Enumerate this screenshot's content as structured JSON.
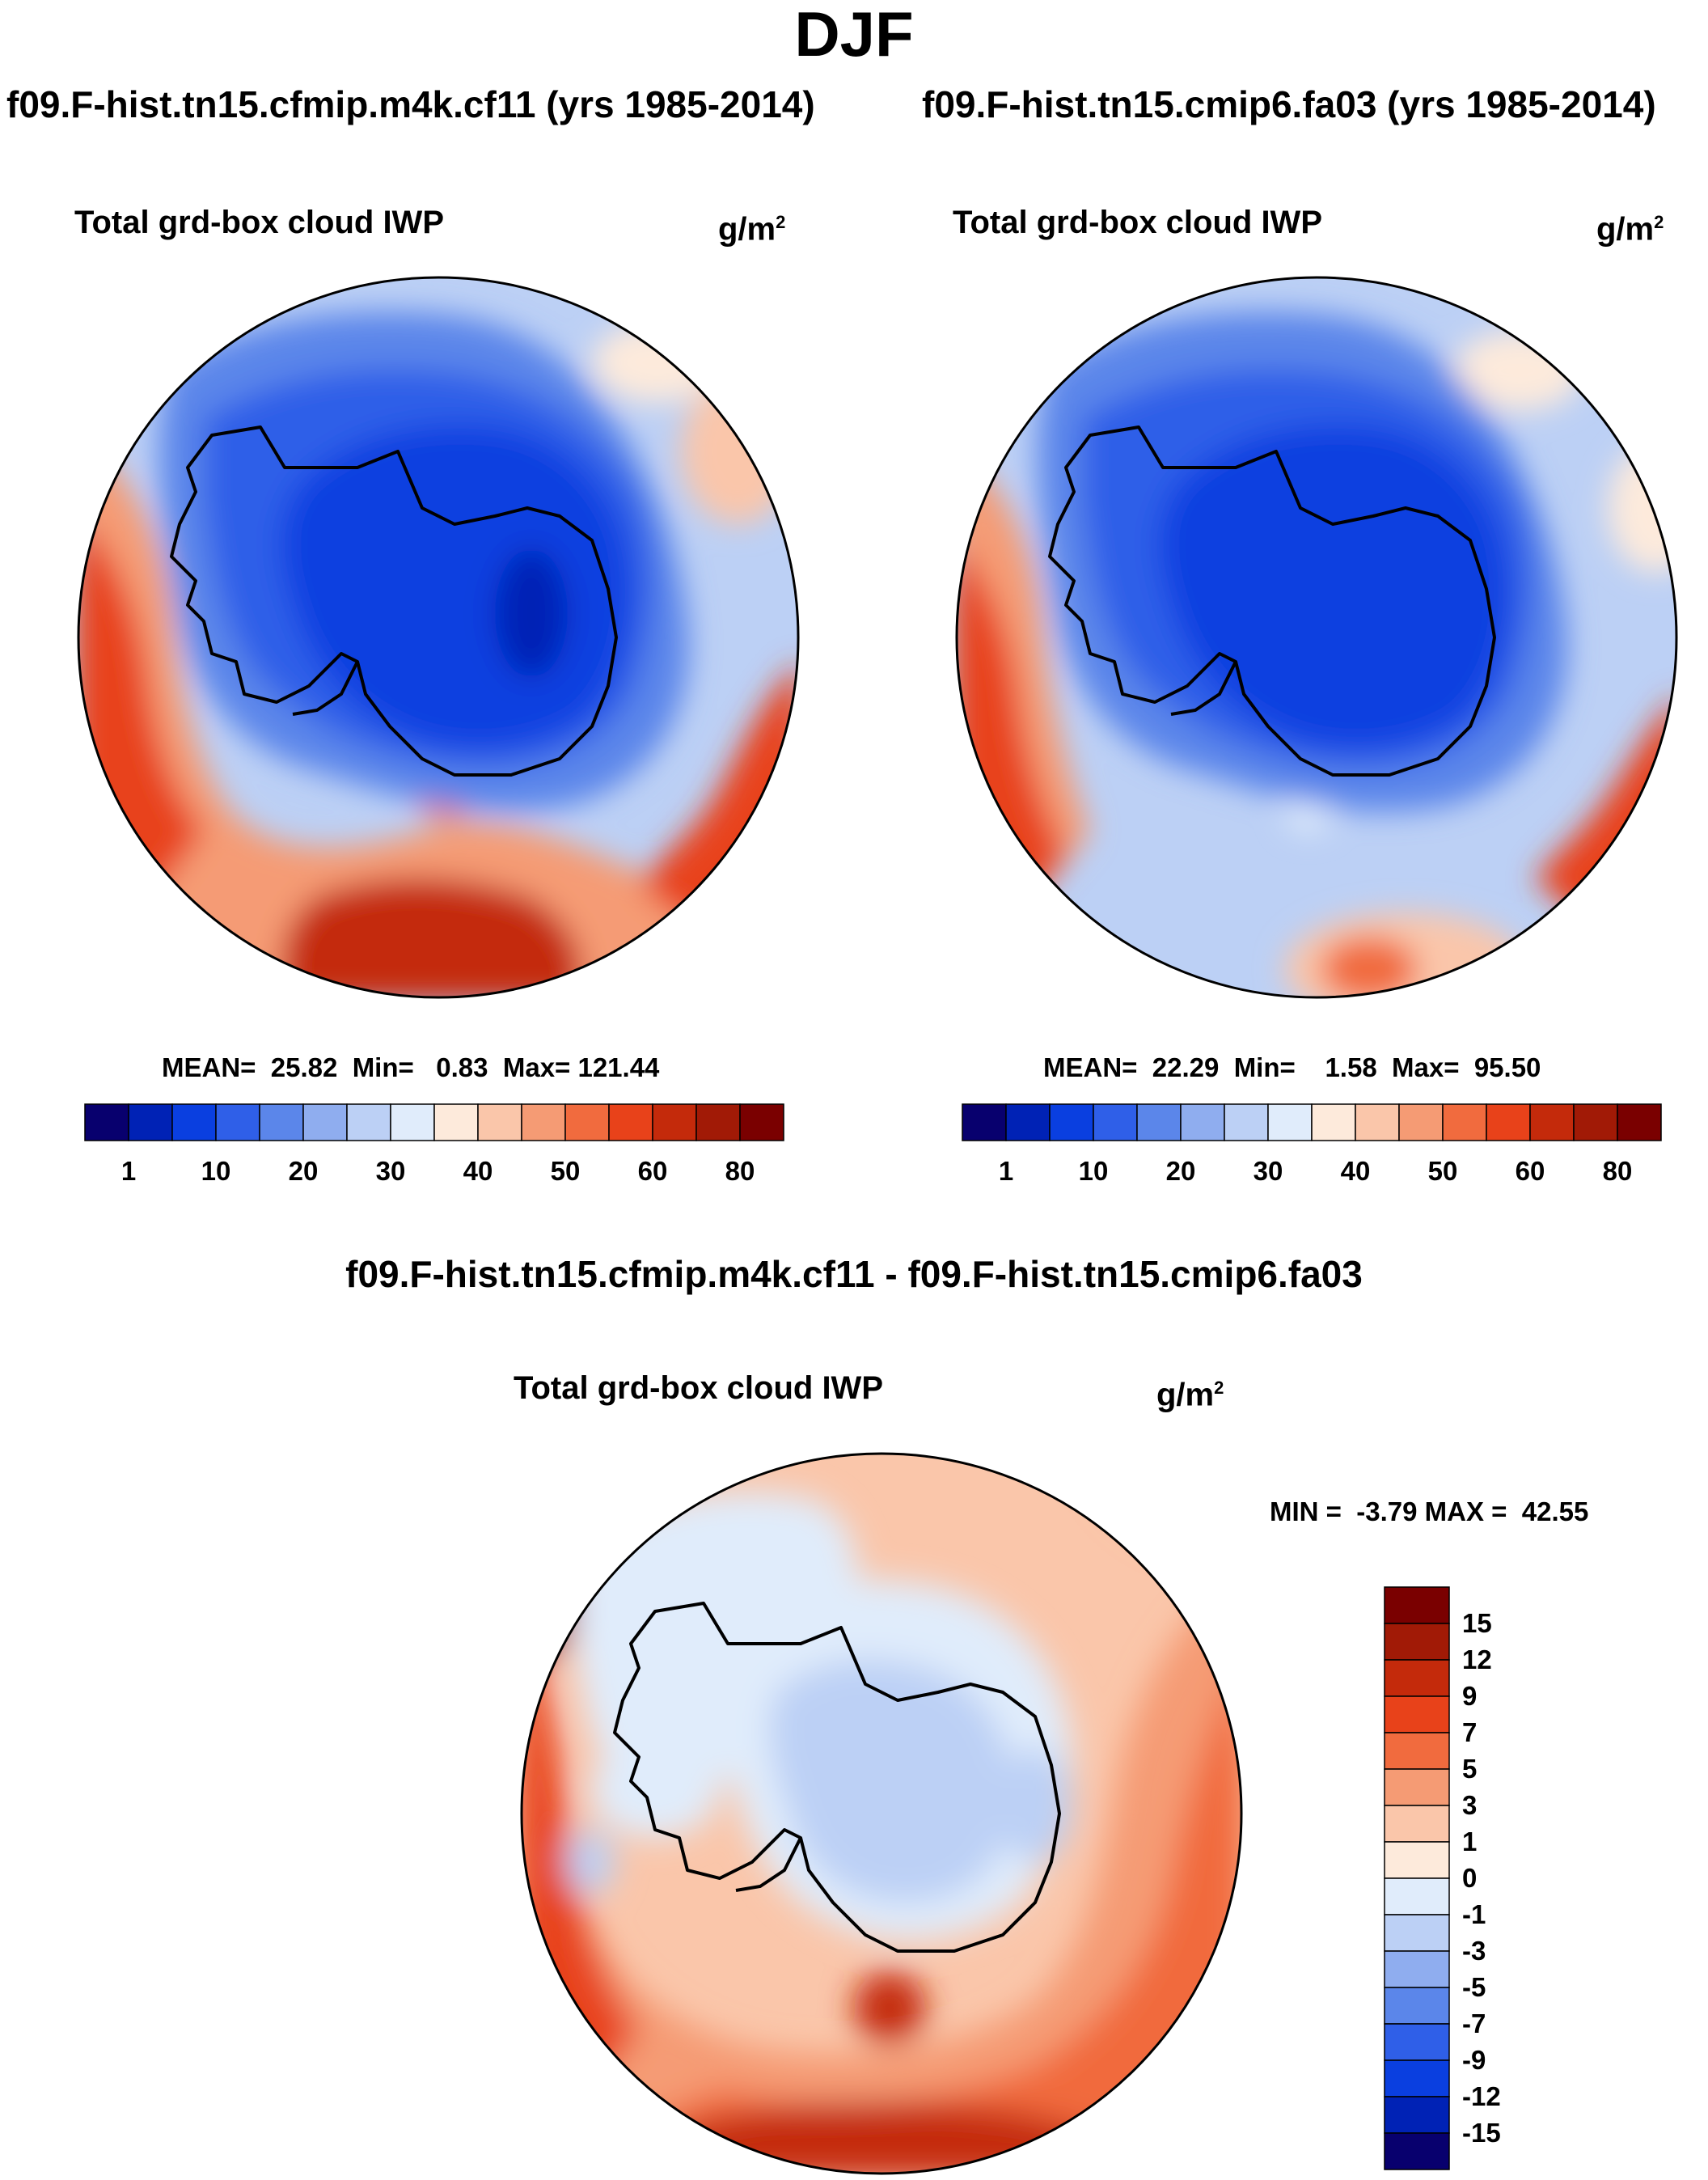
{
  "season": "DJF",
  "panels": [
    {
      "case_title": "f09.F-hist.tn15.cfmip.m4k.cf11 (yrs 1985-2014)",
      "variable": "Total grd-box cloud IWP",
      "units_base": "g/m",
      "units_exp": "2",
      "stats_text": "MEAN=  25.82  Min=   0.83  Max= 121.44",
      "stats": {
        "mean": 25.82,
        "min": 0.83,
        "max": 121.44
      }
    },
    {
      "case_title": "f09.F-hist.tn15.cmip6.fa03 (yrs 1985-2014)",
      "variable": "Total grd-box cloud IWP",
      "units_base": "g/m",
      "units_exp": "2",
      "stats_text": "MEAN=  22.29  Min=    1.58  Max=  95.50",
      "stats": {
        "mean": 22.29,
        "min": 1.58,
        "max": 95.5
      }
    }
  ],
  "difference": {
    "title": "f09.F-hist.tn15.cfmip.m4k.cf11 - f09.F-hist.tn15.cmip6.fa03",
    "variable": "Total grd-box cloud IWP",
    "units_base": "g/m",
    "units_exp": "2",
    "minmax_text": "MIN =  -3.79 MAX =  42.55",
    "stats": {
      "min": -3.79,
      "max": 42.55
    }
  },
  "colorbar_top": {
    "labels": [
      "1",
      "10",
      "20",
      "30",
      "40",
      "50",
      "60",
      "80"
    ],
    "colors": [
      "#08006e",
      "#0022b5",
      "#0a3fe0",
      "#2f5fe8",
      "#5b86ea",
      "#8fadef",
      "#bcd0f5",
      "#e0ecfb",
      "#fdeadb",
      "#fac6aa",
      "#f59b74",
      "#f16b3e",
      "#e8421a",
      "#c42a0b",
      "#a11a06",
      "#7a0000"
    ]
  },
  "colorbar_diff": {
    "labels": [
      "15",
      "12",
      "9",
      "7",
      "5",
      "3",
      "1",
      "0",
      "-1",
      "-3",
      "-5",
      "-7",
      "-9",
      "-12",
      "-15"
    ],
    "colors": [
      "#7a0000",
      "#a11a06",
      "#c42a0b",
      "#e8421a",
      "#f16b3e",
      "#f59b74",
      "#fac6aa",
      "#fdeadb",
      "#e0ecfb",
      "#bcd0f5",
      "#8fadef",
      "#5b86ea",
      "#2f5fe8",
      "#0a3fe0",
      "#0022b5",
      "#08006e"
    ]
  }
}
